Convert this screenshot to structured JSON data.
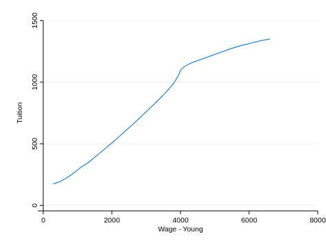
{
  "chart_data": {
    "type": "line",
    "title": "",
    "xlabel": "Wage - Young",
    "ylabel": "Tuition",
    "xlim": [
      0,
      8000
    ],
    "ylim": [
      0,
      1500
    ],
    "x_ticks": [
      0,
      2000,
      4000,
      6000,
      8000
    ],
    "x_tick_labels": [
      "0",
      "2000",
      "4000",
      "6000",
      "8000"
    ],
    "y_ticks": [
      0,
      500,
      1000,
      1500
    ],
    "y_tick_labels": [
      "0",
      "500",
      "1000",
      "1500"
    ],
    "grid": true,
    "legend": "none",
    "colors": {
      "line": "#1a7fd6",
      "grid": "#ececec",
      "axis": "#000000"
    },
    "series": [
      {
        "x": [
          300,
          500,
          700,
          900,
          1100,
          1300,
          1500,
          1800,
          2100,
          2400,
          2700,
          3000,
          3300,
          3600,
          3800,
          3950,
          4000,
          4100,
          4300,
          4600,
          4900,
          5200,
          5500,
          5800,
          6100,
          6400,
          6600
        ],
        "y": [
          175,
          195,
          225,
          265,
          310,
          345,
          390,
          460,
          530,
          605,
          680,
          760,
          840,
          925,
          990,
          1060,
          1095,
          1125,
          1155,
          1185,
          1215,
          1245,
          1275,
          1300,
          1320,
          1340,
          1350
        ]
      }
    ]
  }
}
